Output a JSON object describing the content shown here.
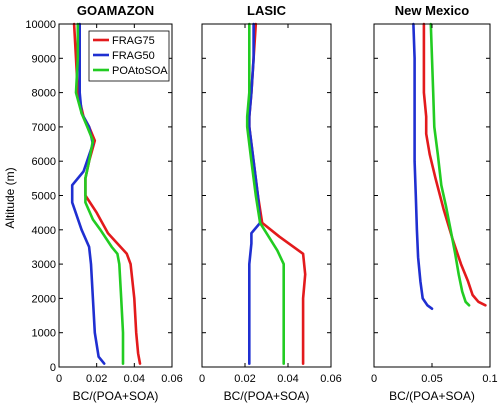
{
  "figure": {
    "ylabel": "Altitude (m)",
    "legend": {
      "placement": "top-right of first panel",
      "items": [
        {
          "name": "FRAG75",
          "color": "#e31a1c"
        },
        {
          "name": "FRAG50",
          "color": "#1f2fd1"
        },
        {
          "name": "POAtoSOA",
          "color": "#22cc22"
        }
      ]
    }
  },
  "chart_data": [
    {
      "type": "line",
      "title": "GOAMAZON",
      "xlabel": "BC/(POA+SOA)",
      "ylabel": "Altitude (m)",
      "xlim": [
        0,
        0.06
      ],
      "ylim": [
        0,
        10000
      ],
      "xticks": [
        "0",
        "0.02",
        "0.04",
        "0.06"
      ],
      "yticks": [
        "0",
        "1000",
        "2000",
        "3000",
        "4000",
        "5000",
        "6000",
        "7000",
        "8000",
        "9000",
        "10000"
      ],
      "grid": false,
      "series": [
        {
          "name": "FRAG75",
          "color": "#e31a1c",
          "points": [
            [
              0.043,
              100
            ],
            [
              0.042,
              400
            ],
            [
              0.041,
              1000
            ],
            [
              0.04,
              2000
            ],
            [
              0.038,
              3000
            ],
            [
              0.036,
              3300
            ],
            [
              0.031,
              3600
            ],
            [
              0.026,
              3900
            ],
            [
              0.022,
              4300
            ],
            [
              0.02,
              4500
            ],
            [
              0.014,
              5000
            ],
            [
              0.014,
              5500
            ],
            [
              0.016,
              6000
            ],
            [
              0.019,
              6600
            ],
            [
              0.016,
              7000
            ],
            [
              0.013,
              7300
            ],
            [
              0.01,
              8000
            ],
            [
              0.009,
              9000
            ],
            [
              0.008,
              10000
            ]
          ]
        },
        {
          "name": "FRAG50",
          "color": "#1f2fd1",
          "points": [
            [
              0.024,
              100
            ],
            [
              0.021,
              300
            ],
            [
              0.019,
              1000
            ],
            [
              0.018,
              2000
            ],
            [
              0.017,
              3000
            ],
            [
              0.016,
              3500
            ],
            [
              0.012,
              4000
            ],
            [
              0.007,
              4800
            ],
            [
              0.007,
              5300
            ],
            [
              0.013,
              5700
            ],
            [
              0.018,
              6500
            ],
            [
              0.016,
              7000
            ],
            [
              0.012,
              7400
            ],
            [
              0.011,
              8000
            ],
            [
              0.011,
              9000
            ],
            [
              0.011,
              10000
            ]
          ]
        },
        {
          "name": "POAtoSOA",
          "color": "#22cc22",
          "points": [
            [
              0.034,
              100
            ],
            [
              0.034,
              1000
            ],
            [
              0.033,
              2000
            ],
            [
              0.032,
              3000
            ],
            [
              0.031,
              3300
            ],
            [
              0.028,
              3500
            ],
            [
              0.022,
              4000
            ],
            [
              0.018,
              4300
            ],
            [
              0.014,
              4800
            ],
            [
              0.014,
              5500
            ],
            [
              0.016,
              6000
            ],
            [
              0.018,
              6600
            ],
            [
              0.015,
              7000
            ],
            [
              0.012,
              7400
            ],
            [
              0.009,
              8000
            ],
            [
              0.01,
              9000
            ],
            [
              0.01,
              10000
            ]
          ]
        }
      ]
    },
    {
      "type": "line",
      "title": "LASIC",
      "xlabel": "BC/(POA+SOA)",
      "ylabel": "",
      "xlim": [
        0,
        0.06
      ],
      "ylim": [
        0,
        10000
      ],
      "xticks": [
        "0",
        "0.02",
        "0.04",
        "0.06"
      ],
      "yticks": [],
      "grid": false,
      "series": [
        {
          "name": "FRAG75",
          "color": "#e31a1c",
          "points": [
            [
              0.047,
              100
            ],
            [
              0.047,
              1000
            ],
            [
              0.047,
              2000
            ],
            [
              0.048,
              2700
            ],
            [
              0.047,
              3300
            ],
            [
              0.036,
              3800
            ],
            [
              0.028,
              4200
            ],
            [
              0.026,
              5000
            ],
            [
              0.024,
              6000
            ],
            [
              0.022,
              7000
            ],
            [
              0.022,
              7300
            ],
            [
              0.023,
              8000
            ],
            [
              0.024,
              9000
            ],
            [
              0.025,
              10000
            ]
          ]
        },
        {
          "name": "FRAG50",
          "color": "#1f2fd1",
          "points": [
            [
              0.022,
              100
            ],
            [
              0.022,
              1000
            ],
            [
              0.022,
              2000
            ],
            [
              0.022,
              3000
            ],
            [
              0.023,
              3600
            ],
            [
              0.023,
              3900
            ],
            [
              0.027,
              4200
            ],
            [
              0.026,
              5000
            ],
            [
              0.024,
              6000
            ],
            [
              0.022,
              7000
            ],
            [
              0.022,
              7300
            ],
            [
              0.023,
              8000
            ],
            [
              0.024,
              9000
            ],
            [
              0.024,
              10000
            ]
          ]
        },
        {
          "name": "POAtoSOA",
          "color": "#22cc22",
          "points": [
            [
              0.038,
              100
            ],
            [
              0.038,
              1000
            ],
            [
              0.038,
              2000
            ],
            [
              0.038,
              3000
            ],
            [
              0.035,
              3400
            ],
            [
              0.029,
              4000
            ],
            [
              0.027,
              4200
            ],
            [
              0.025,
              5000
            ],
            [
              0.023,
              6000
            ],
            [
              0.021,
              7000
            ],
            [
              0.021,
              7300
            ],
            [
              0.022,
              8000
            ],
            [
              0.022,
              9000
            ],
            [
              0.022,
              10000
            ]
          ]
        }
      ]
    },
    {
      "type": "line",
      "title": "New Mexico",
      "xlabel": "BC/(POA+SOA)",
      "ylabel": "",
      "xlim": [
        0,
        0.1
      ],
      "ylim": [
        0,
        10000
      ],
      "xticks": [
        "0",
        "0.05",
        "0.1"
      ],
      "yticks": [],
      "grid": false,
      "series": [
        {
          "name": "FRAG75",
          "color": "#e31a1c",
          "points": [
            [
              0.096,
              1800
            ],
            [
              0.09,
              1900
            ],
            [
              0.085,
              2100
            ],
            [
              0.081,
              2500
            ],
            [
              0.075,
              3000
            ],
            [
              0.068,
              3700
            ],
            [
              0.06,
              4600
            ],
            [
              0.053,
              5500
            ],
            [
              0.048,
              6200
            ],
            [
              0.045,
              6800
            ],
            [
              0.045,
              7300
            ],
            [
              0.043,
              8000
            ],
            [
              0.043,
              9000
            ],
            [
              0.043,
              10000
            ]
          ]
        },
        {
          "name": "FRAG50",
          "color": "#1f2fd1",
          "points": [
            [
              0.05,
              1700
            ],
            [
              0.046,
              1800
            ],
            [
              0.042,
              2000
            ],
            [
              0.04,
              2500
            ],
            [
              0.038,
              3200
            ],
            [
              0.037,
              4000
            ],
            [
              0.036,
              5000
            ],
            [
              0.035,
              6000
            ],
            [
              0.035,
              7000
            ],
            [
              0.035,
              8000
            ],
            [
              0.035,
              9000
            ],
            [
              0.034,
              10000
            ]
          ]
        },
        {
          "name": "POAtoSOA",
          "color": "#22cc22",
          "points": [
            [
              0.082,
              1800
            ],
            [
              0.079,
              1900
            ],
            [
              0.076,
              2200
            ],
            [
              0.073,
              2700
            ],
            [
              0.07,
              3300
            ],
            [
              0.066,
              4000
            ],
            [
              0.062,
              4700
            ],
            [
              0.058,
              5300
            ],
            [
              0.055,
              6200
            ],
            [
              0.052,
              7000
            ],
            [
              0.051,
              8000
            ],
            [
              0.05,
              9000
            ],
            [
              0.049,
              10000
            ]
          ]
        }
      ]
    }
  ]
}
